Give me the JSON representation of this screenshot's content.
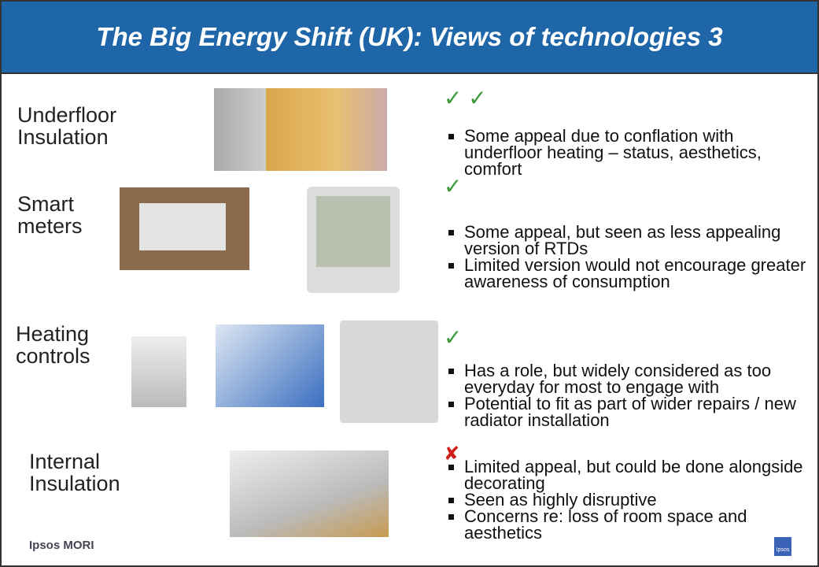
{
  "header": {
    "title": "The Big Energy Shift (UK): Views of technologies 3"
  },
  "rows": [
    {
      "label": [
        "Underfloor",
        "Insulation"
      ],
      "rating": "✓ ✓",
      "bullets": [
        "Some appeal due to conflation with underfloor heating – status, aesthetics, comfort"
      ]
    },
    {
      "label": [
        "Smart",
        "meters"
      ],
      "rating": "✓",
      "bullets": [
        "Some appeal, but seen as less appealing version of RTDs",
        "Limited version would not encourage greater awareness of consumption"
      ]
    },
    {
      "label": [
        "Heating",
        "controls"
      ],
      "rating": "✓",
      "bullets": [
        "Has a role, but widely considered as too everyday for most to engage with",
        "Potential to fit as part of wider repairs / new radiator installation"
      ]
    },
    {
      "label": [
        "Internal",
        "Insulation"
      ],
      "rating": "✘",
      "bullets": [
        "Limited appeal, but could be done alongside decorating",
        "Seen as highly disruptive",
        "Concerns re: loss of room space and aesthetics"
      ]
    }
  ],
  "footer": {
    "brand": "Ipsos MORI",
    "logo": "Ipsos"
  }
}
